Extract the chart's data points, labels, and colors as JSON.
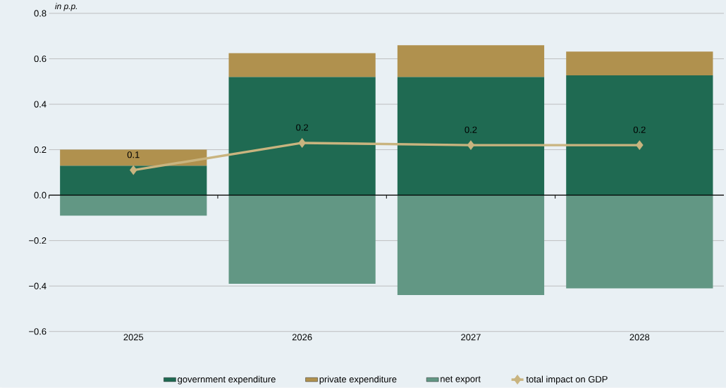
{
  "chart_data": {
    "type": "bar",
    "stacked": true,
    "ylabel": "in p.p.",
    "categories": [
      "2025",
      "2026",
      "2027",
      "2028"
    ],
    "series": [
      {
        "name": "government expenditure",
        "color": "#1f6a52",
        "values": [
          0.13,
          0.52,
          0.52,
          0.527
        ]
      },
      {
        "name": "private expenditure",
        "color": "#b0914e",
        "values": [
          0.07,
          0.105,
          0.14,
          0.105
        ]
      },
      {
        "name": "net export",
        "color": "#629784",
        "values": [
          -0.09,
          -0.39,
          -0.44,
          -0.41
        ]
      },
      {
        "name": "total impact on GDP",
        "type": "line",
        "color": "#c9b47f",
        "marker": "diamond",
        "values": [
          0.11,
          0.23,
          0.22,
          0.22
        ],
        "value_labels": [
          "0.1",
          "0.2",
          "0.2",
          "0.2"
        ]
      }
    ],
    "ylim": [
      -0.6,
      0.8
    ],
    "yticks": [
      {
        "value": -0.6,
        "label": "−0.6"
      },
      {
        "value": -0.4,
        "label": "−0.4"
      },
      {
        "value": -0.2,
        "label": "−0.2"
      },
      {
        "value": 0,
        "label": "0.0"
      },
      {
        "value": 0.2,
        "label": "0.2"
      },
      {
        "value": 0.4,
        "label": "0.4"
      },
      {
        "value": 0.6,
        "label": "0.6"
      },
      {
        "value": 0.8,
        "label": "0.8"
      }
    ],
    "grid": "y",
    "legend": "bottom"
  }
}
